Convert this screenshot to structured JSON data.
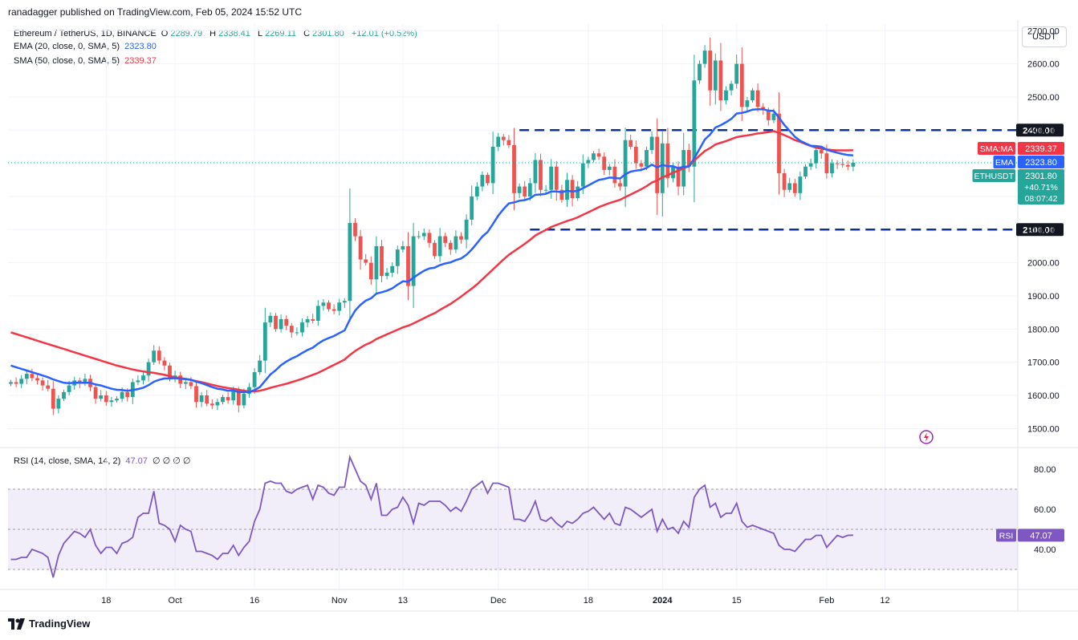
{
  "header": {
    "published": "ranadagger published on TradingView.com, Feb 05, 2024 15:52 UTC"
  },
  "legend": {
    "symbol": "Ethereum / TetherUS, 1D, BINANCE",
    "o_label": "O",
    "o": "2289.79",
    "h_label": "H",
    "h": "2338.41",
    "l_label": "L",
    "l": "2269.11",
    "c_label": "C",
    "c": "2301.80",
    "chg": "+12.01 (+0.52%)",
    "ema_label": "EMA (20, close, 0, SMA, 5)",
    "ema_val": "2323.80",
    "sma_label": "SMA (50, close, 0, SMA, 5)",
    "sma_val": "2339.37",
    "rsi_label": "RSI (14, close, SMA, 14, 2)",
    "rsi_val": "47.07",
    "rsi_extra": "∅ ∅ ∅ ∅"
  },
  "currency_button": "USDT",
  "brand": "TradingView",
  "colors": {
    "up": "#26a69a",
    "down": "#ef5350",
    "ema": "#2962ff",
    "sma": "#f23645",
    "rsi": "#7e57c2",
    "level": "#0c3299"
  },
  "chart_data": {
    "type": "candlestick",
    "price_axis": {
      "min": 1450,
      "max": 2720,
      "ticks": [
        1500,
        1600,
        1700,
        1800,
        1900,
        2000,
        2100,
        2200,
        2300,
        2400,
        2500,
        2600,
        2700
      ]
    },
    "time_labels": [
      {
        "label": "18",
        "day": 18
      },
      {
        "label": "Oct",
        "day": 31
      },
      {
        "label": "16",
        "day": 46
      },
      {
        "label": "Nov",
        "day": 62
      },
      {
        "label": "13",
        "day": 74
      },
      {
        "label": "Dec",
        "day": 92
      },
      {
        "label": "18",
        "day": 109
      },
      {
        "label": "2024",
        "day": 123
      },
      {
        "label": "15",
        "day": 137
      },
      {
        "label": "Feb",
        "day": 154
      },
      {
        "label": "12",
        "day": 165
      }
    ],
    "levels": [
      {
        "price": 2400,
        "label": "2400.00"
      },
      {
        "price": 2100,
        "label": "2100.00"
      }
    ],
    "markers": [
      {
        "name": "SMA:MA",
        "value": "2339.37",
        "price": 2339.37,
        "color": "#f23645"
      },
      {
        "name": "EMA",
        "value": "2323.80",
        "price": 2323.8,
        "color": "#2962ff"
      },
      {
        "name": "ETHUSDT",
        "value": "2301.80",
        "extra": [
          "+40.71%",
          "08:07:42"
        ],
        "price": 2301.8,
        "color": "#26a69a"
      }
    ],
    "close": [
      1640,
      1635,
      1650,
      1665,
      1652,
      1645,
      1630,
      1620,
      1560,
      1590,
      1610,
      1630,
      1645,
      1638,
      1650,
      1625,
      1590,
      1600,
      1580,
      1585,
      1590,
      1610,
      1595,
      1640,
      1645,
      1660,
      1700,
      1735,
      1705,
      1690,
      1650,
      1660,
      1635,
      1640,
      1628,
      1580,
      1600,
      1575,
      1570,
      1580,
      1595,
      1585,
      1615,
      1570,
      1605,
      1625,
      1670,
      1705,
      1820,
      1840,
      1800,
      1830,
      1810,
      1790,
      1790,
      1820,
      1830,
      1825,
      1870,
      1880,
      1860,
      1855,
      1880,
      1885,
      2120,
      2080,
      2010,
      2000,
      1950,
      2050,
      1960,
      1970,
      1990,
      2040,
      2050,
      1930,
      2080,
      2080,
      2090,
      2060,
      2020,
      2080,
      2060,
      2040,
      2080,
      2070,
      2130,
      2200,
      2230,
      2265,
      2240,
      2350,
      2380,
      2370,
      2355,
      2210,
      2230,
      2200,
      2240,
      2310,
      2220,
      2220,
      2290,
      2220,
      2190,
      2250,
      2195,
      2230,
      2300,
      2310,
      2330,
      2320,
      2280,
      2290,
      2240,
      2230,
      2370,
      2350,
      2300,
      2290,
      2340,
      2380,
      2210,
      2360,
      2255,
      2290,
      2230,
      2340,
      2290,
      2550,
      2600,
      2640,
      2520,
      2610,
      2490,
      2520,
      2540,
      2600,
      2470,
      2490,
      2520,
      2470,
      2460,
      2430,
      2450,
      2270,
      2220,
      2240,
      2210,
      2260,
      2290,
      2300,
      2340,
      2330,
      2270,
      2300,
      2298,
      2295,
      2290,
      2301.8
    ],
    "ema20": [
      1690,
      1685,
      1680,
      1675,
      1670,
      1665,
      1660,
      1655,
      1648,
      1643,
      1638,
      1637,
      1638,
      1638,
      1638,
      1638,
      1633,
      1630,
      1625,
      1620,
      1617,
      1616,
      1614,
      1616,
      1619,
      1623,
      1631,
      1641,
      1647,
      1651,
      1651,
      1652,
      1650,
      1649,
      1647,
      1641,
      1637,
      1631,
      1625,
      1620,
      1618,
      1614,
      1615,
      1610,
      1610,
      1610,
      1616,
      1625,
      1644,
      1663,
      1676,
      1691,
      1702,
      1711,
      1718,
      1728,
      1737,
      1744,
      1756,
      1766,
      1773,
      1779,
      1788,
      1796,
      1829,
      1856,
      1873,
      1886,
      1893,
      1907,
      1911,
      1916,
      1923,
      1934,
      1944,
      1943,
      1955,
      1966,
      1976,
      1983,
      1985,
      1993,
      1998,
      2001,
      2008,
      2013,
      2024,
      2040,
      2059,
      2079,
      2093,
      2117,
      2142,
      2162,
      2179,
      2182,
      2187,
      2189,
      2194,
      2205,
      2206,
      2208,
      2215,
      2215,
      2213,
      2217,
      2215,
      2217,
      2225,
      2233,
      2242,
      2250,
      2253,
      2257,
      2256,
      2254,
      2267,
      2275,
      2278,
      2280,
      2286,
      2296,
      2288,
      2295,
      2291,
      2291,
      2285,
      2290,
      2290,
      2315,
      2343,
      2372,
      2387,
      2408,
      2415,
      2424,
      2434,
      2450,
      2452,
      2456,
      2462,
      2463,
      2463,
      2459,
      2458,
      2438,
      2416,
      2398,
      2380,
      2368,
      2360,
      2353,
      2352,
      2350,
      2341,
      2336,
      2332,
      2328,
      2325,
      2323.8
    ],
    "sma50": [
      1790,
      1785,
      1780,
      1775,
      1770,
      1765,
      1760,
      1755,
      1750,
      1745,
      1740,
      1735,
      1730,
      1725,
      1720,
      1715,
      1710,
      1705,
      1700,
      1695,
      1690,
      1686,
      1682,
      1678,
      1675,
      1672,
      1670,
      1668,
      1665,
      1662,
      1658,
      1655,
      1652,
      1650,
      1647,
      1643,
      1640,
      1636,
      1632,
      1628,
      1625,
      1622,
      1620,
      1617,
      1614,
      1612,
      1612,
      1614,
      1618,
      1623,
      1627,
      1631,
      1635,
      1640,
      1645,
      1650,
      1656,
      1662,
      1668,
      1676,
      1684,
      1692,
      1700,
      1708,
      1722,
      1734,
      1744,
      1753,
      1760,
      1770,
      1777,
      1784,
      1791,
      1798,
      1805,
      1810,
      1817,
      1825,
      1833,
      1841,
      1848,
      1858,
      1867,
      1876,
      1887,
      1898,
      1910,
      1922,
      1935,
      1950,
      1965,
      1980,
      1995,
      2010,
      2024,
      2035,
      2046,
      2057,
      2069,
      2082,
      2091,
      2099,
      2108,
      2114,
      2120,
      2126,
      2131,
      2137,
      2145,
      2152,
      2160,
      2168,
      2174,
      2180,
      2185,
      2190,
      2198,
      2206,
      2214,
      2222,
      2231,
      2242,
      2248,
      2258,
      2264,
      2272,
      2278,
      2285,
      2292,
      2308,
      2323,
      2337,
      2346,
      2357,
      2362,
      2367,
      2373,
      2379,
      2382,
      2384,
      2387,
      2390,
      2392,
      2394,
      2397,
      2392,
      2385,
      2378,
      2370,
      2365,
      2358,
      2352,
      2347,
      2344,
      2342,
      2340,
      2339,
      2339,
      2339,
      2339.37
    ],
    "rsi_axis": {
      "min": 20,
      "max": 90,
      "ticks": [
        40,
        60,
        80
      ],
      "bands": [
        30,
        50,
        70
      ]
    },
    "rsi_marker": {
      "name": "RSI",
      "value": "47.07"
    },
    "rsi": [
      35,
      35,
      36,
      36,
      40,
      39,
      38,
      36,
      26,
      37,
      43,
      46,
      49,
      48,
      46,
      50,
      42,
      38,
      41,
      41,
      38,
      43,
      44,
      46,
      56,
      58,
      58,
      69,
      53,
      52,
      50,
      44,
      52,
      50,
      49,
      39,
      39,
      38,
      37,
      35,
      38,
      38,
      42,
      37,
      41,
      44,
      54,
      60,
      73,
      74,
      73,
      73,
      69,
      68,
      70,
      71,
      72,
      65,
      72,
      71,
      68,
      67,
      71,
      71,
      86,
      80,
      74,
      72,
      65,
      73,
      57,
      57,
      60,
      61,
      66,
      62,
      53,
      63,
      62,
      64,
      64,
      64,
      62,
      59,
      61,
      59,
      64,
      70,
      72,
      74,
      68,
      73,
      73,
      72,
      71,
      55,
      55,
      54,
      58,
      64,
      55,
      54,
      56,
      53,
      51,
      54,
      53,
      55,
      58,
      59,
      61,
      58,
      55,
      58,
      53,
      52,
      61,
      60,
      58,
      56,
      58,
      60,
      49,
      55,
      50,
      51,
      48,
      54,
      51,
      66,
      70,
      72,
      61,
      63,
      56,
      58,
      58,
      63,
      54,
      51,
      52,
      51,
      50,
      49,
      48,
      42,
      40,
      40,
      39,
      42,
      45,
      45,
      47,
      47,
      41,
      44,
      47,
      46,
      47,
      47.07
    ]
  }
}
